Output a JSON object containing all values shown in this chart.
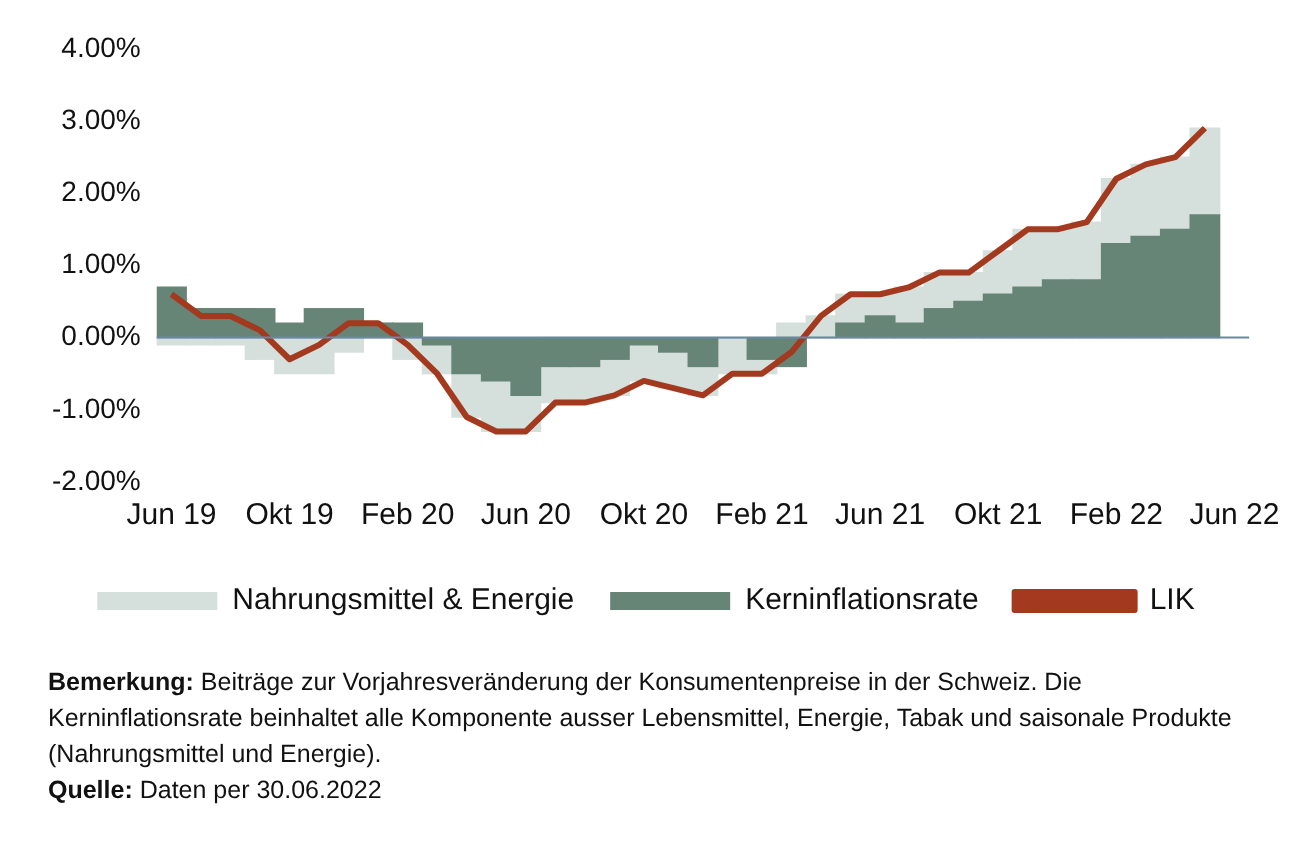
{
  "chart_data": {
    "type": "bar",
    "stacked": true,
    "categories": [
      "Jun 19",
      null,
      null,
      null,
      "Okt 19",
      null,
      null,
      null,
      "Feb 20",
      null,
      null,
      null,
      "Jun 20",
      null,
      null,
      null,
      "Okt 20",
      null,
      null,
      null,
      "Feb 21",
      null,
      null,
      null,
      "Jun 21",
      null,
      null,
      null,
      "Okt 21",
      null,
      null,
      null,
      "Feb 22",
      null,
      null,
      null,
      "Jun 22"
    ],
    "series": [
      {
        "name": "Kerninflationsrate",
        "color": "#678577",
        "values": [
          0.7,
          0.4,
          0.4,
          0.4,
          0.2,
          0.4,
          0.4,
          0.2,
          0.2,
          -0.1,
          -0.5,
          -0.6,
          -0.8,
          -0.4,
          -0.4,
          -0.3,
          -0.1,
          -0.2,
          -0.4,
          0,
          -0.3,
          -0.4,
          0,
          0.2,
          0.3,
          0.2,
          0.4,
          0.5,
          0.6,
          0.7,
          0.8,
          0.8,
          1.3,
          1.4,
          1.5,
          1.7,
          null
        ]
      },
      {
        "name": "Nahrungsmittel & Energie",
        "color": "#d5dfdb",
        "values": [
          -0.1,
          -0.1,
          -0.1,
          -0.3,
          -0.5,
          -0.5,
          -0.2,
          0,
          -0.3,
          -0.4,
          -0.6,
          -0.7,
          -0.5,
          -0.5,
          -0.5,
          -0.5,
          -0.5,
          -0.5,
          -0.4,
          -0.5,
          -0.2,
          0.2,
          0.3,
          0.4,
          0.3,
          0.5,
          0.5,
          0.4,
          0.6,
          0.8,
          0.7,
          0.8,
          0.9,
          1.0,
          1.0,
          1.2,
          null
        ]
      },
      {
        "name": "LIK",
        "type": "line",
        "color": "#a3391f",
        "values": [
          0.6,
          0.3,
          0.3,
          0.1,
          -0.3,
          -0.1,
          0.2,
          0.2,
          -0.1,
          -0.5,
          -1.1,
          -1.3,
          -1.3,
          -0.9,
          -0.9,
          -0.8,
          -0.6,
          -0.7,
          -0.8,
          -0.5,
          -0.5,
          -0.2,
          0.3,
          0.6,
          0.6,
          0.7,
          0.9,
          0.9,
          1.2,
          1.5,
          1.5,
          1.6,
          2.2,
          2.4,
          2.5,
          2.9,
          null
        ]
      }
    ],
    "ylim": [
      -2,
      4
    ],
    "yticks": [
      {
        "value": -2,
        "label": "-2.00%"
      },
      {
        "value": -1,
        "label": "-1.00%"
      },
      {
        "value": 0,
        "label": "0.00%"
      },
      {
        "value": 1,
        "label": "1.00%"
      },
      {
        "value": 2,
        "label": "2.00%"
      },
      {
        "value": 3,
        "label": "3.00%"
      },
      {
        "value": 4,
        "label": "4.00%"
      }
    ],
    "grid": false,
    "legend": "bottom",
    "ref_lines": [
      {
        "axis": "y",
        "value": 0,
        "color": "#6a87a8"
      }
    ],
    "annotations": [
      "Bemerkung: Beiträge zur Vorjahresveränderung der Konsumentenpreise in der Schweiz. Die Kerninflationsrate beinhaltet alle Komponente ausser Lebensmittel, Energie, Tabak und saisonale Produkte (Nahrungsmittel und Energie).",
      "Quelle: Daten per 30.06.2022"
    ]
  }
}
